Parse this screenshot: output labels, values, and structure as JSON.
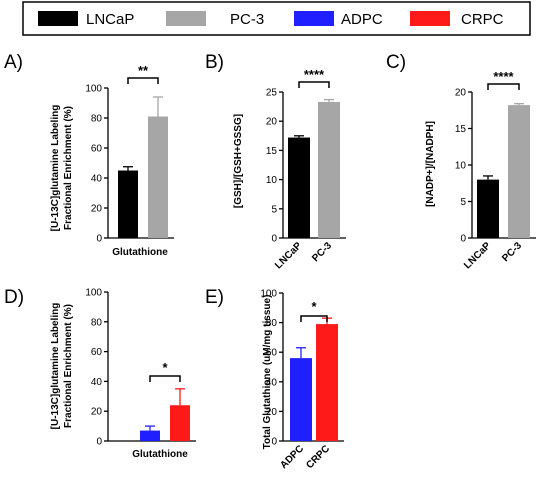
{
  "legend": {
    "items": [
      {
        "label": "LNCaP",
        "color": "#000000"
      },
      {
        "label": "PC-3",
        "color": "#a6a6a6"
      },
      {
        "label": "ADPC",
        "color": "#1f1fff"
      },
      {
        "label": "CRPC",
        "color": "#ff1a1a"
      }
    ]
  },
  "chart_data": [
    {
      "id": "A",
      "panel_label": "A)",
      "type": "bar",
      "categories": [
        "Glutathione"
      ],
      "series": [
        {
          "name": "LNCaP",
          "color": "#000000",
          "values": [
            45
          ],
          "errors": [
            2.5
          ]
        },
        {
          "name": "PC-3",
          "color": "#a6a6a6",
          "values": [
            81
          ],
          "errors": [
            13
          ]
        }
      ],
      "ylabel_line1": "[U-13C]glutamine Labeling",
      "ylabel_line2": "Fractional Enrichment (%)",
      "ylim": [
        0,
        100
      ],
      "yticks": [
        0,
        20,
        40,
        60,
        80,
        100
      ],
      "significance": "**"
    },
    {
      "id": "B",
      "panel_label": "B)",
      "type": "bar",
      "categories": [
        "LNCaP",
        "PC-3"
      ],
      "values": [
        17.2,
        23.3
      ],
      "errors": [
        0.3,
        0.4
      ],
      "colors": [
        "#000000",
        "#a6a6a6"
      ],
      "ylabel": "[GSH]/[GSH+GSSG]",
      "ylim": [
        0,
        25
      ],
      "yticks": [
        0,
        5,
        10,
        15,
        20,
        25
      ],
      "significance": "****"
    },
    {
      "id": "C",
      "panel_label": "C)",
      "type": "bar",
      "categories": [
        "LNCaP",
        "PC-3"
      ],
      "values": [
        8,
        18.2
      ],
      "errors": [
        0.5,
        0.2
      ],
      "colors": [
        "#000000",
        "#a6a6a6"
      ],
      "ylabel": "[NADP+]/[NADPH]",
      "ylim": [
        0,
        20
      ],
      "yticks": [
        0,
        5,
        10,
        15,
        20
      ],
      "significance": "****"
    },
    {
      "id": "D",
      "panel_label": "D)",
      "type": "bar",
      "categories": [
        "Glutathione"
      ],
      "series": [
        {
          "name": "ADPC",
          "color": "#1f1fff",
          "values": [
            7
          ],
          "errors": [
            3
          ]
        },
        {
          "name": "CRPC",
          "color": "#ff1a1a",
          "values": [
            24
          ],
          "errors": [
            11
          ]
        }
      ],
      "ylabel_line1": "[U-13C]glutamine Labeling",
      "ylabel_line2": "Fractional Enrichment (%)",
      "ylim": [
        0,
        100
      ],
      "yticks": [
        0,
        20,
        40,
        60,
        80,
        100
      ],
      "significance": "*"
    },
    {
      "id": "E",
      "panel_label": "E)",
      "type": "bar",
      "categories": [
        "ADPC",
        "CRPC"
      ],
      "values": [
        56,
        79
      ],
      "errors": [
        7,
        4
      ],
      "colors": [
        "#1f1fff",
        "#ff1a1a"
      ],
      "ylabel": "Total Glutathione (uM/mg tissue)",
      "ylim": [
        0,
        100
      ],
      "yticks": [
        0,
        20,
        40,
        60,
        80,
        100
      ],
      "significance": "*"
    }
  ]
}
